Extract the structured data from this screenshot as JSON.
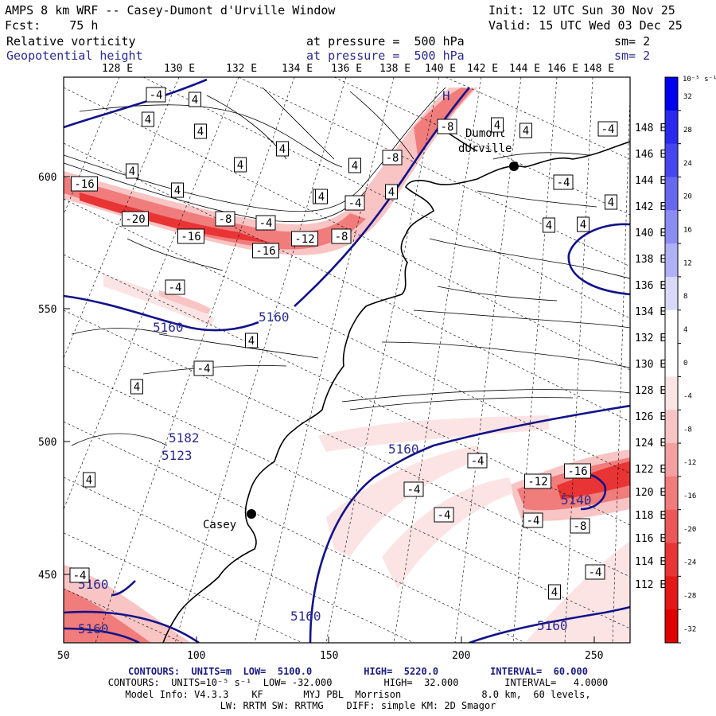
{
  "header": {
    "title": "AMPS 8 km WRF -- Casey-Dumont d'Urville Window",
    "init": "Init: 12 UTC Sun 30 Nov 25",
    "fcst": "Fcst:    75 h",
    "valid": "Valid: 15 UTC Wed 03 Dec 25"
  },
  "fields": [
    {
      "name": "Relative vorticity",
      "level": "at pressure =  500 hPa",
      "sm": "sm= 2",
      "color": "#000000"
    },
    {
      "name": "Geopotential height",
      "level": "at pressure =  500 hPa",
      "sm": "sm= 2",
      "color": "#2b2b8f"
    }
  ],
  "top_lon_labels": [
    "128 E",
    "130 E",
    "132 E",
    "134 E",
    "136 E",
    "138 E",
    "140 E",
    "142 E",
    "144 E",
    "146 E",
    "148 E"
  ],
  "right_lon_labels": [
    "148 E",
    "146 E",
    "144 E",
    "142 E",
    "140 E",
    "138 E",
    "136 E",
    "134 E",
    "132 E",
    "130 E",
    "128 E",
    "126 E",
    "124 E",
    "122 E",
    "120 E",
    "118 E",
    "116 E",
    "114 E",
    "112 E"
  ],
  "x_ticks": [
    "50",
    "100",
    "150",
    "200",
    "250"
  ],
  "y_ticks": [
    "600",
    "550",
    "500",
    "450"
  ],
  "colorbar": {
    "unit": "10⁻⁵ s⁻¹",
    "labels": [
      "32",
      "28",
      "24",
      "20",
      "16",
      "12",
      "8",
      "4",
      "0",
      "-4",
      "-8",
      "-12",
      "-16",
      "-20",
      "-24",
      "-28",
      "-32"
    ],
    "colors": [
      "#0000ee",
      "#2a2aee",
      "#4646ee",
      "#6868ee",
      "#8c8cf2",
      "#b0b0f6",
      "#d8d8fa",
      "#ffffff",
      "#ffffff",
      "#fce4e4",
      "#f8c4c4",
      "#f4a0a0",
      "#f07c7c",
      "#ec5858",
      "#e83434",
      "#e41818",
      "#e00000"
    ]
  },
  "places": [
    {
      "name": "Casey"
    },
    {
      "name": "Dumont"
    },
    {
      "name": "dUrville"
    }
  ],
  "height_labels": [
    "5160",
    "5160",
    "5160",
    "5160",
    "5160",
    "5160",
    "5160",
    "5140",
    "5123",
    "5182",
    "H"
  ],
  "vort_labels": [
    "-4",
    "4",
    "4",
    "4",
    "4",
    "4",
    "4",
    "4",
    "4",
    "4",
    "-16",
    "-20",
    "-16",
    "-8",
    "-4",
    "-12",
    "-16",
    "-8",
    "-8",
    "-8",
    "-4",
    "4",
    "4",
    "4",
    "-4",
    "-4",
    "4",
    "4",
    "4",
    "-4",
    "4",
    "-4",
    "-12",
    "-16",
    "-4",
    "-8",
    "-4",
    "-4",
    "-4",
    "4",
    "4",
    "4",
    "-4",
    "-4",
    "4"
  ],
  "footer": {
    "line1": "CONTOURS:  UNITS=m  LOW=  5100.0         HIGH=  5220.0         INTERVAL=  60.000",
    "line2": "CONTOURS:  UNITS=10⁻⁵ s⁻¹  LOW= -32.000         HIGH=  32.000        INTERVAL=   4.0000",
    "line3": "Model Info: V4.3.3    KF       MYJ PBL  Morrison              8.0 km,  60 levels,",
    "line4": "LW: RRTM SW: RRTMG    DIFF: simple KM: 2D Smagor"
  }
}
